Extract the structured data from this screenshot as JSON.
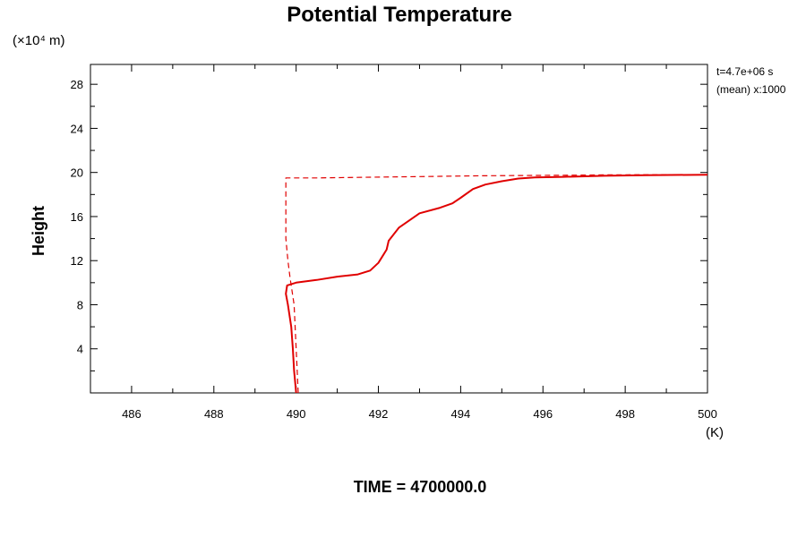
{
  "chart_data": {
    "type": "line",
    "title": "Potential Temperature",
    "ylabel": "Height",
    "yunit_label": "(×10⁴ m)",
    "xunit_label": "(K)",
    "info_line1": "t=4.7e+06 s",
    "info_line2": "(mean) x:1000",
    "footer": "TIME = 4700000.0",
    "xlim": [
      485,
      500
    ],
    "ylim": [
      0,
      29.8
    ],
    "xticks": [
      486,
      488,
      490,
      492,
      494,
      496,
      498,
      500
    ],
    "xtick_labels": [
      "486",
      "488",
      "490",
      "492",
      "494",
      "496",
      "498",
      "500"
    ],
    "yticks": [
      4,
      8,
      12,
      16,
      20,
      24,
      28
    ],
    "ytick_labels": [
      "4",
      "8",
      "12",
      "16",
      "20",
      "24",
      "28"
    ],
    "grid": false,
    "series": [
      {
        "style": "solid",
        "color": "#e00000",
        "x": [
          490.0,
          489.95,
          489.92,
          489.88,
          489.8,
          489.75,
          489.78,
          490.0,
          490.5,
          491.0,
          491.5,
          491.8,
          492.0,
          492.1,
          492.2,
          492.25,
          492.5,
          493.0,
          493.5,
          493.8,
          494.0,
          494.3,
          494.6,
          495.0,
          495.4,
          495.8,
          496.5,
          497.5,
          498.5,
          500.0
        ],
        "y": [
          0.0,
          2.0,
          4.0,
          6.0,
          8.0,
          9.0,
          9.75,
          10.0,
          10.25,
          10.55,
          10.75,
          11.1,
          11.8,
          12.4,
          13.0,
          13.8,
          15.0,
          16.3,
          16.8,
          17.2,
          17.7,
          18.5,
          18.9,
          19.2,
          19.45,
          19.55,
          19.6,
          19.7,
          19.75,
          19.8
        ]
      },
      {
        "style": "dashed",
        "color": "#e00000",
        "x": [
          490.05,
          490.0,
          489.95,
          489.85,
          489.8,
          489.75,
          489.75,
          490.5,
          491.5,
          492.5,
          493.5,
          494.5,
          495.5,
          496.5,
          497.5,
          498.5,
          500.0
        ],
        "y": [
          0.0,
          4.0,
          8.0,
          10.5,
          12.0,
          14.0,
          19.5,
          19.5,
          19.55,
          19.6,
          19.65,
          19.7,
          19.72,
          19.75,
          19.78,
          19.8,
          19.8
        ]
      }
    ]
  }
}
